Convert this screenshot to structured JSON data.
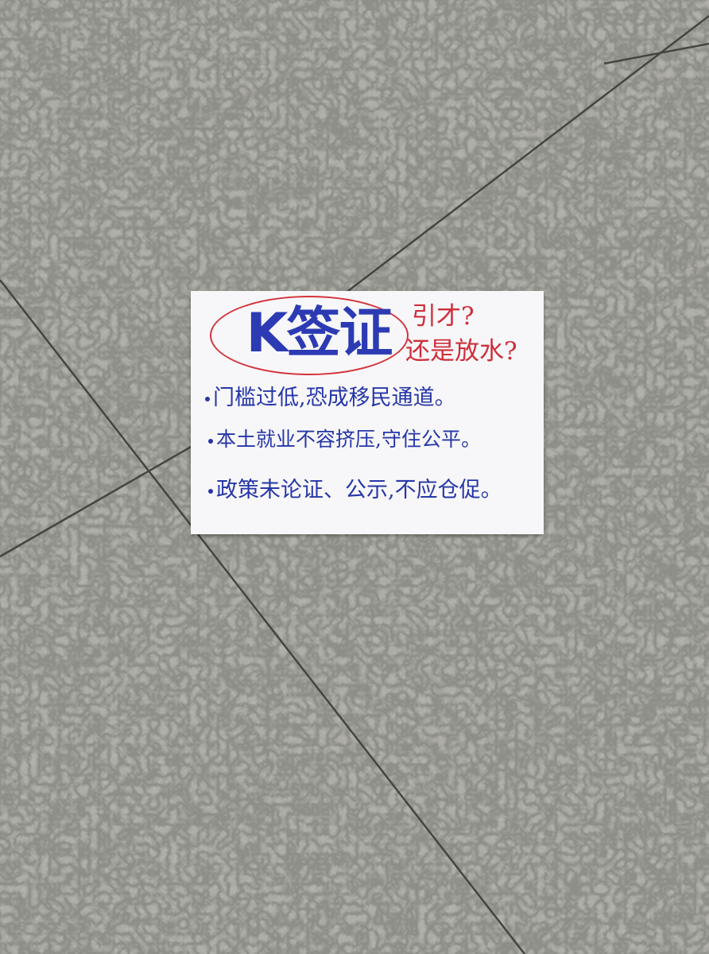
{
  "scene": {
    "surface": "granite-floor-tiles",
    "colors": {
      "granite_base": "#7a7a72",
      "granite_dark": "#3f403c",
      "granite_light": "#b3b3ab",
      "tile_seam": "#4a4a45",
      "paper": "#f7f7f9",
      "blue_ink": "#2c3bb3",
      "red_ink": "#d4333b"
    }
  },
  "sign": {
    "title": "K签证",
    "question_1": "引才?",
    "question_2": "还是放水?",
    "lines": [
      "门槛过低,恐成移民通道。",
      "本土就业不容挤压,守住公平。",
      "政策未论证、公示,不应仓促。"
    ]
  }
}
